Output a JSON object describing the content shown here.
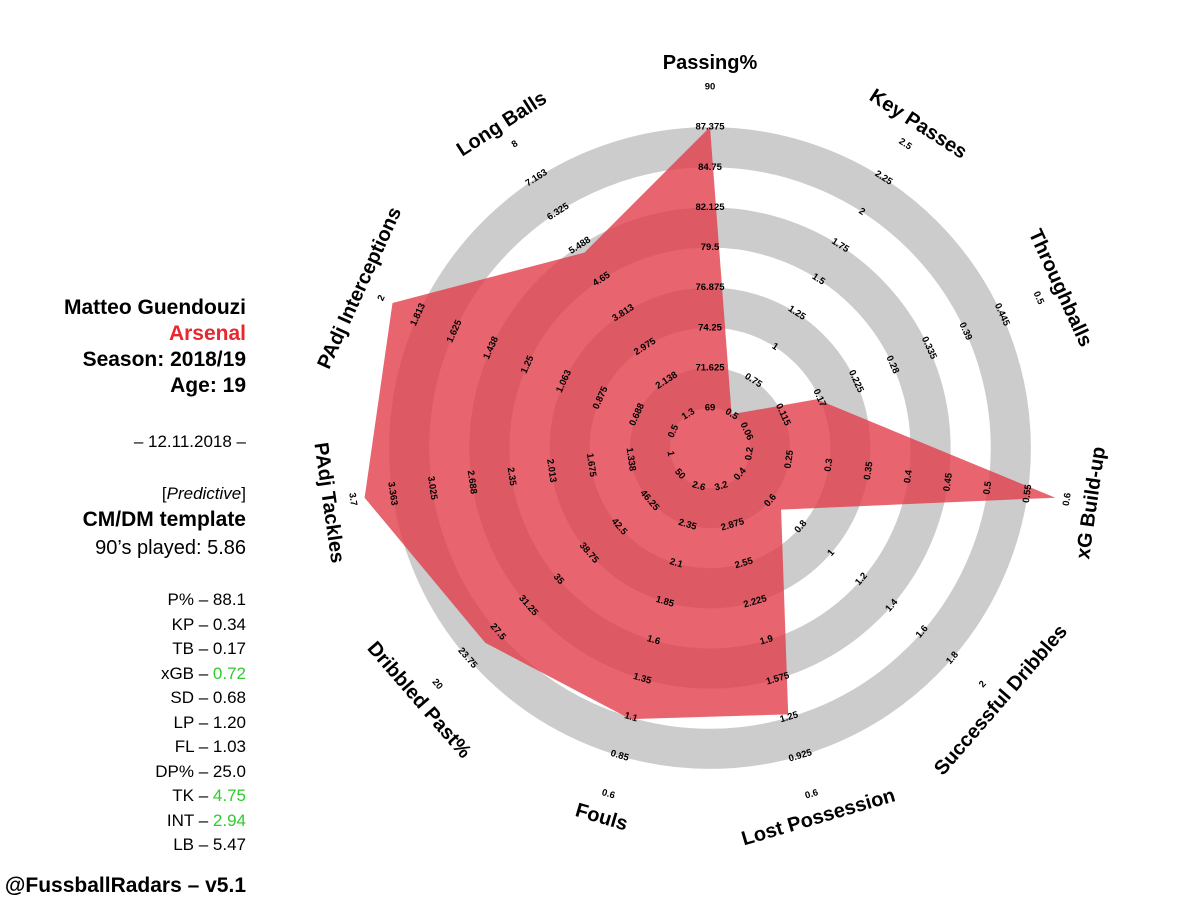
{
  "player": {
    "name": "Matteo Guendouzi",
    "team": "Arsenal",
    "season": "Season: 2018/19",
    "age": "Age: 19",
    "date": "– 12.11.2018 –",
    "mode_open": "[",
    "mode": "Predictive",
    "mode_close": "]",
    "template": "CM/DM template",
    "played": "90’s played: 5.86"
  },
  "stats": [
    {
      "key": "P% – ",
      "value": "88.1",
      "highlight": false
    },
    {
      "key": "KP – ",
      "value": "0.34",
      "highlight": false
    },
    {
      "key": "TB – ",
      "value": "0.17",
      "highlight": false
    },
    {
      "key": "xGB – ",
      "value": "0.72",
      "highlight": true
    },
    {
      "key": "SD – ",
      "value": "0.68",
      "highlight": false
    },
    {
      "key": "LP – ",
      "value": "1.20",
      "highlight": false
    },
    {
      "key": "FL – ",
      "value": "1.03",
      "highlight": false
    },
    {
      "key": "DP% – ",
      "value": "25.0",
      "highlight": false
    },
    {
      "key": "TK – ",
      "value": "4.75",
      "highlight": true
    },
    {
      "key": "INT – ",
      "value": "2.94",
      "highlight": true
    },
    {
      "key": "LB – ",
      "value": "5.47",
      "highlight": false
    }
  ],
  "credit": "@FussballRadars – v5.1",
  "colors": {
    "ring": "#cccccc",
    "fill": "#e23a47",
    "team": "#e8272e",
    "highlight": "#2ecc2e"
  },
  "chart_data": {
    "type": "radar",
    "axes": [
      {
        "label": "Passing%",
        "ticks": [
          "69",
          "71.625",
          "74.25",
          "76.875",
          "79.5",
          "82.125",
          "84.75",
          "87.375",
          "90"
        ],
        "value": 88.1,
        "min": 69,
        "max": 90
      },
      {
        "label": "Key Passes",
        "ticks": [
          "0.5",
          "0.75",
          "1",
          "1.25",
          "1.5",
          "1.75",
          "2",
          "2.25",
          "2.5"
        ],
        "value": 0.34,
        "min": 0.5,
        "max": 2.5
      },
      {
        "label": "Throughballs",
        "ticks": [
          "0.06",
          "0.115",
          "0.17",
          "0.225",
          "0.28",
          "0.335",
          "0.39",
          "0.445",
          "0.5"
        ],
        "value": 0.17,
        "min": 0.06,
        "max": 0.5
      },
      {
        "label": "xG Build-up",
        "ticks": [
          "0.2",
          "0.25",
          "0.3",
          "0.35",
          "0.4",
          "0.45",
          "0.5",
          "0.55",
          "0.6"
        ],
        "value": 0.72,
        "min": 0.2,
        "max": 0.6
      },
      {
        "label": "Successful Dribbles",
        "ticks": [
          "0.4",
          "0.6",
          "0.8",
          "1",
          "1.2",
          "1.4",
          "1.6",
          "1.8",
          "2"
        ],
        "value": 0.68,
        "min": 0.4,
        "max": 2
      },
      {
        "label": "Lost Possession",
        "ticks": [
          "3.2",
          "2.875",
          "2.55",
          "2.225",
          "1.9",
          "1.575",
          "1.25",
          "0.925",
          "0.6"
        ],
        "value": 1.2,
        "min": 3.2,
        "max": 0.6
      },
      {
        "label": "Fouls",
        "ticks": [
          "2.6",
          "2.35",
          "2.1",
          "1.85",
          "1.6",
          "1.35",
          "1.1",
          "0.85",
          "0.6"
        ],
        "value": 1.03,
        "min": 2.6,
        "max": 0.6
      },
      {
        "label": "Dribbled Past%",
        "ticks": [
          "50",
          "46.25",
          "42.5",
          "38.75",
          "35",
          "31.25",
          "27.5",
          "23.75",
          "20"
        ],
        "value": 25.0,
        "min": 50,
        "max": 20
      },
      {
        "label": "PAdj Tackles",
        "ticks": [
          "1",
          "1.338",
          "1.675",
          "2.013",
          "2.35",
          "2.688",
          "3.025",
          "3.363",
          "3.7"
        ],
        "value": 4.75,
        "min": 1,
        "max": 3.7
      },
      {
        "label": "PAdj Interceptions",
        "ticks": [
          "0.5",
          "0.688",
          "0.875",
          "1.063",
          "1.25",
          "1.438",
          "1.625",
          "1.813",
          "2"
        ],
        "value": 2.94,
        "min": 0.5,
        "max": 2
      },
      {
        "label": "Long Balls",
        "ticks": [
          "1.3",
          "2.138",
          "2.975",
          "3.813",
          "4.65",
          "5.488",
          "6.325",
          "7.163",
          "8"
        ],
        "value": 5.47,
        "min": 1.3,
        "max": 8
      }
    ]
  }
}
